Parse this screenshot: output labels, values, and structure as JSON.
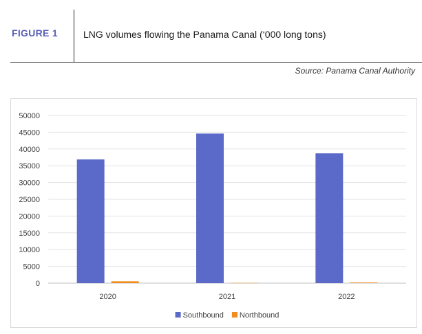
{
  "header": {
    "figure_label": "FIGURE 1",
    "title": "LNG volumes flowing the Panama Canal (‘000 long tons)",
    "source": "Source: Panama Canal Authority"
  },
  "chart_data": {
    "type": "bar",
    "title": "LNG volumes flowing the Panama Canal (‘000 long tons)",
    "xlabel": "",
    "ylabel": "",
    "categories": [
      "2020",
      "2021",
      "2022"
    ],
    "series": [
      {
        "name": "Southbound",
        "color": "#5b6ac8",
        "values": [
          36900,
          44600,
          38700
        ]
      },
      {
        "name": "Northbound",
        "color": "#f28c1e",
        "values": [
          550,
          80,
          200
        ]
      }
    ],
    "ylim": [
      0,
      50000
    ],
    "yticks": [
      0,
      5000,
      10000,
      15000,
      20000,
      25000,
      30000,
      35000,
      40000,
      45000,
      50000
    ],
    "grid": true,
    "legend_position": "bottom"
  }
}
